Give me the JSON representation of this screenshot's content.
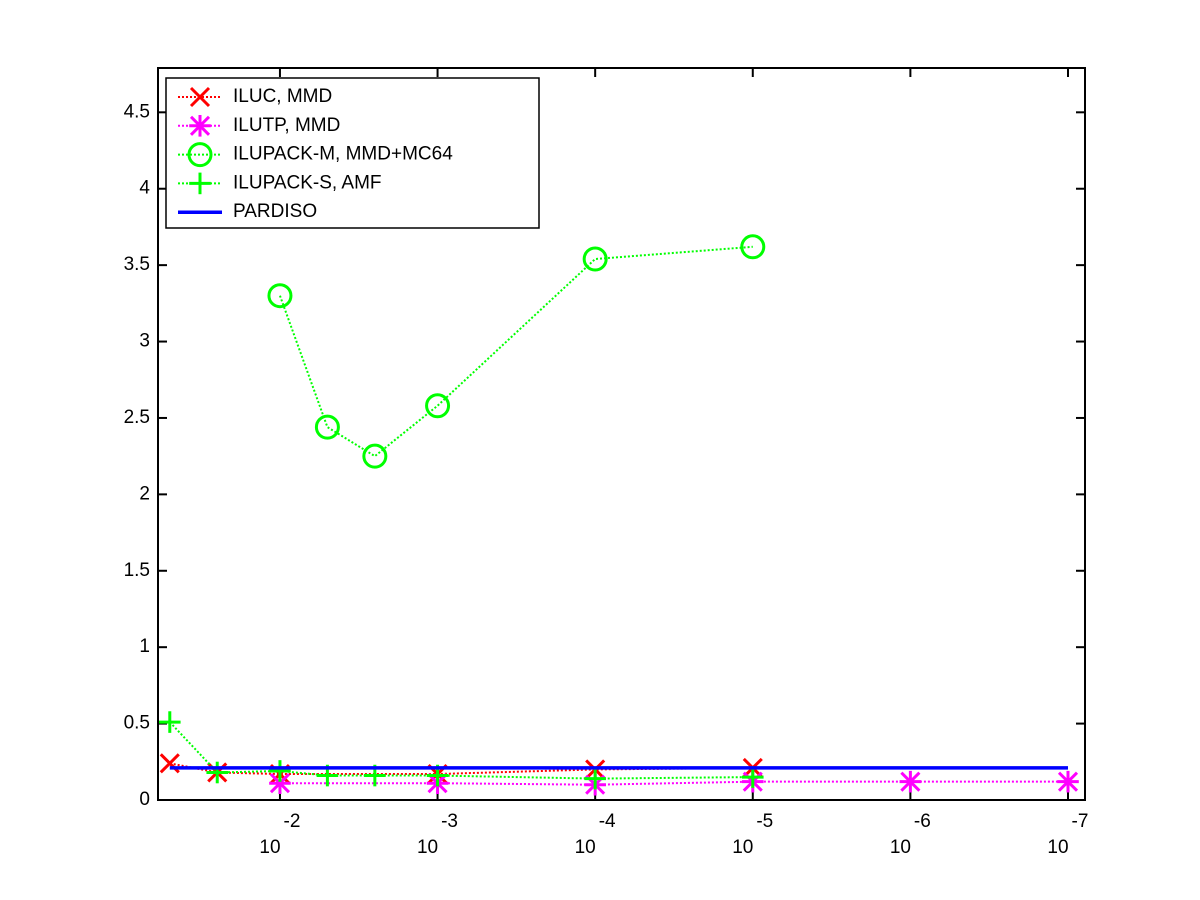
{
  "chart_data": {
    "type": "line",
    "log_x": true,
    "xlim": [
      0.0594,
      7.8e-08
    ],
    "ylim": [
      0,
      4.79
    ],
    "xticks": [
      {
        "value": 0.01,
        "label": "10",
        "exponent": "-2"
      },
      {
        "value": 0.001,
        "label": "10",
        "exponent": "-3"
      },
      {
        "value": 0.0001,
        "label": "10",
        "exponent": "-4"
      },
      {
        "value": 1e-05,
        "label": "10",
        "exponent": "-5"
      },
      {
        "value": 1e-06,
        "label": "10",
        "exponent": "-6"
      },
      {
        "value": 1e-07,
        "label": "10",
        "exponent": "-7"
      }
    ],
    "yticks": [
      0,
      0.5,
      1,
      1.5,
      2,
      2.5,
      3,
      3.5,
      4,
      4.5
    ],
    "legend": "upper left",
    "series": [
      {
        "name": "ILUC, MMD",
        "color": "#ff0000",
        "marker": "x",
        "linestyle": "dotted",
        "x": [
          0.05,
          0.025,
          0.01,
          0.001,
          0.0001,
          1e-05
        ],
        "values": [
          0.24,
          0.18,
          0.17,
          0.17,
          0.2,
          0.21
        ]
      },
      {
        "name": "ILUTP, MMD",
        "color": "#ff00ff",
        "marker": "asterisk",
        "linestyle": "dotted",
        "x": [
          0.01,
          0.001,
          0.0001,
          1e-05,
          1e-06,
          1e-07
        ],
        "values": [
          0.11,
          0.11,
          0.1,
          0.12,
          0.12,
          0.12
        ]
      },
      {
        "name": "ILUPACK-M, MMD+MC64",
        "color": "#00ff00",
        "marker": "circle",
        "linestyle": "dotted",
        "x": [
          0.01,
          0.005,
          0.0025,
          0.001,
          0.0001,
          1e-05
        ],
        "values": [
          3.3,
          2.44,
          2.25,
          2.58,
          3.54,
          3.62
        ]
      },
      {
        "name": "ILUPACK-S, AMF",
        "color": "#00ff00",
        "marker": "plus",
        "linestyle": "dotted",
        "x": [
          0.05,
          0.025,
          0.01,
          0.005,
          0.0025,
          0.001,
          0.0001,
          1e-05
        ],
        "values": [
          0.51,
          0.18,
          0.19,
          0.16,
          0.16,
          0.16,
          0.14,
          0.15
        ]
      },
      {
        "name": "PARDISO",
        "color": "#0000ff",
        "marker": "none",
        "linestyle": "solid",
        "x": [
          0.05,
          1e-07
        ],
        "values": [
          0.21,
          0.21
        ]
      }
    ]
  }
}
